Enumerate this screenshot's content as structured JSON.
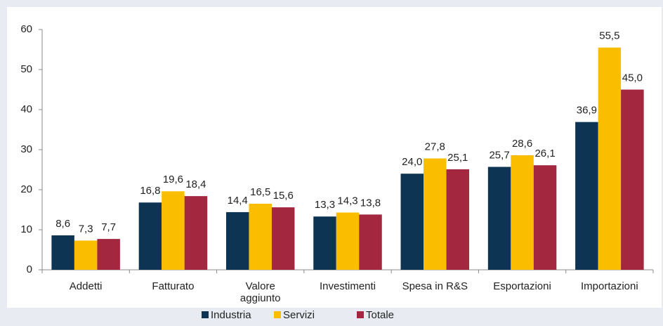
{
  "chart_data": {
    "type": "bar",
    "categories": [
      "Addetti",
      "Fatturato",
      "Valore aggiunto",
      "Investimenti",
      "Spesa in R&S",
      "Esportazioni",
      "Importazioni"
    ],
    "series": [
      {
        "name": "Industria",
        "color": "#0d3553",
        "values": [
          8.6,
          16.8,
          14.4,
          13.3,
          24.0,
          25.7,
          36.9
        ],
        "value_labels": [
          "8,6",
          "16,8",
          "14,4",
          "13,3",
          "24,0",
          "25,7",
          "36,9"
        ]
      },
      {
        "name": "Servizi",
        "color": "#fbbd00",
        "values": [
          7.3,
          19.6,
          16.5,
          14.3,
          27.8,
          28.6,
          55.5
        ],
        "value_labels": [
          "7,3",
          "19,6",
          "16,5",
          "14,3",
          "27,8",
          "28,6",
          "55,5"
        ]
      },
      {
        "name": "Totale",
        "color": "#a3283f",
        "values": [
          7.7,
          18.4,
          15.6,
          13.8,
          25.1,
          26.1,
          45.0
        ],
        "value_labels": [
          "7,7",
          "18,4",
          "15,6",
          "13,8",
          "25,1",
          "26,1",
          "45,0"
        ]
      }
    ],
    "ylim": [
      0,
      60
    ],
    "yticks": [
      0,
      10,
      20,
      30,
      40,
      50,
      60
    ],
    "legend": "bottom"
  }
}
